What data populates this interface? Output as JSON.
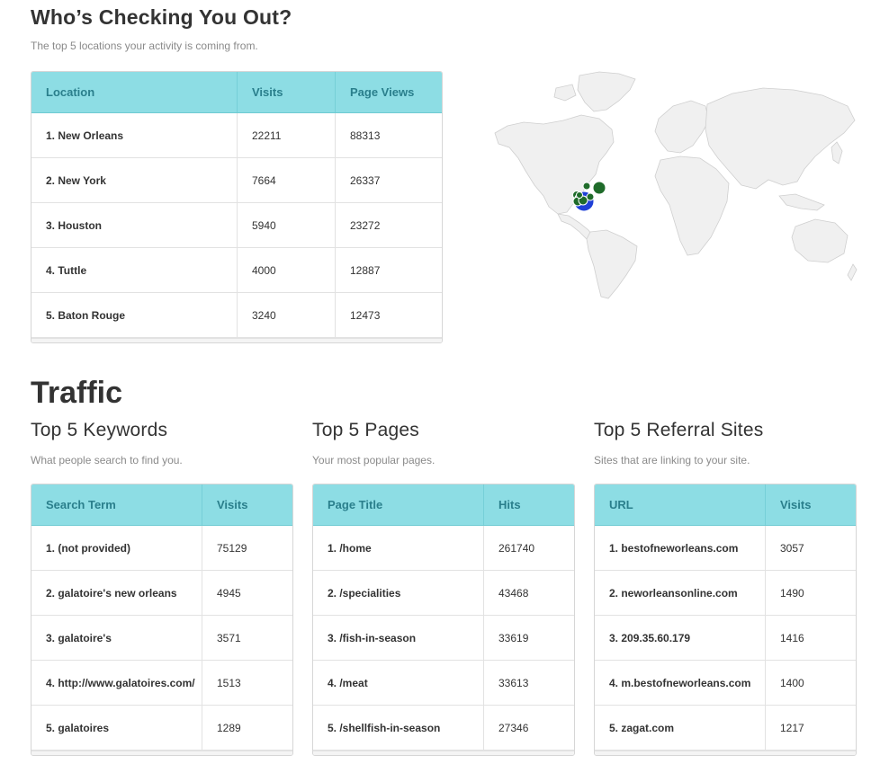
{
  "locations": {
    "title": "Who’s Checking You Out?",
    "subtitle": "The top 5 locations your activity is coming from.",
    "headers": [
      "Location",
      "Visits",
      "Page Views"
    ],
    "rows": [
      [
        "1. New Orleans",
        "22211",
        "88313"
      ],
      [
        "2. New York",
        "7664",
        "26337"
      ],
      [
        "3. Houston",
        "5940",
        "23272"
      ],
      [
        "4. Tuttle",
        "4000",
        "12887"
      ],
      [
        "5. Baton Rouge",
        "3240",
        "12473"
      ]
    ]
  },
  "map": {
    "colors": {
      "land": "#f0f0f0",
      "border": "#d0d0d0",
      "marker_green": "#1f6b2a",
      "marker_blue": "#1e3fd6"
    }
  },
  "traffic": {
    "title": "Traffic",
    "keywords": {
      "title": "Top 5 Keywords",
      "subtitle": "What people search to find you.",
      "headers": [
        "Search Term",
        "Visits"
      ],
      "rows": [
        [
          "1. (not provided)",
          "75129"
        ],
        [
          "2. galatoire's new orleans",
          "4945"
        ],
        [
          "3. galatoire's",
          "3571"
        ],
        [
          "4. http://www.galatoires.com/",
          "1513"
        ],
        [
          "5. galatoires",
          "1289"
        ]
      ]
    },
    "pages": {
      "title": "Top 5 Pages",
      "subtitle": "Your most popular pages.",
      "headers": [
        "Page Title",
        "Hits"
      ],
      "rows": [
        [
          "1. /home",
          "261740"
        ],
        [
          "2. /specialities",
          "43468"
        ],
        [
          "3. /fish-in-season",
          "33619"
        ],
        [
          "4. /meat",
          "33613"
        ],
        [
          "5. /shellfish-in-season",
          "27346"
        ]
      ]
    },
    "referrals": {
      "title": "Top 5 Referral Sites",
      "subtitle": "Sites that are linking to your site.",
      "headers": [
        "URL",
        "Visits"
      ],
      "rows": [
        [
          "1. bestofneworleans.com",
          "3057"
        ],
        [
          "2. neworleansonline.com",
          "1490"
        ],
        [
          "3. 209.35.60.179",
          "1416"
        ],
        [
          "4. m.bestofneworleans.com",
          "1400"
        ],
        [
          "5. zagat.com",
          "1217"
        ]
      ]
    }
  },
  "colors": {
    "header_bg": "#8ddde4",
    "header_text": "#2a7f8c"
  }
}
